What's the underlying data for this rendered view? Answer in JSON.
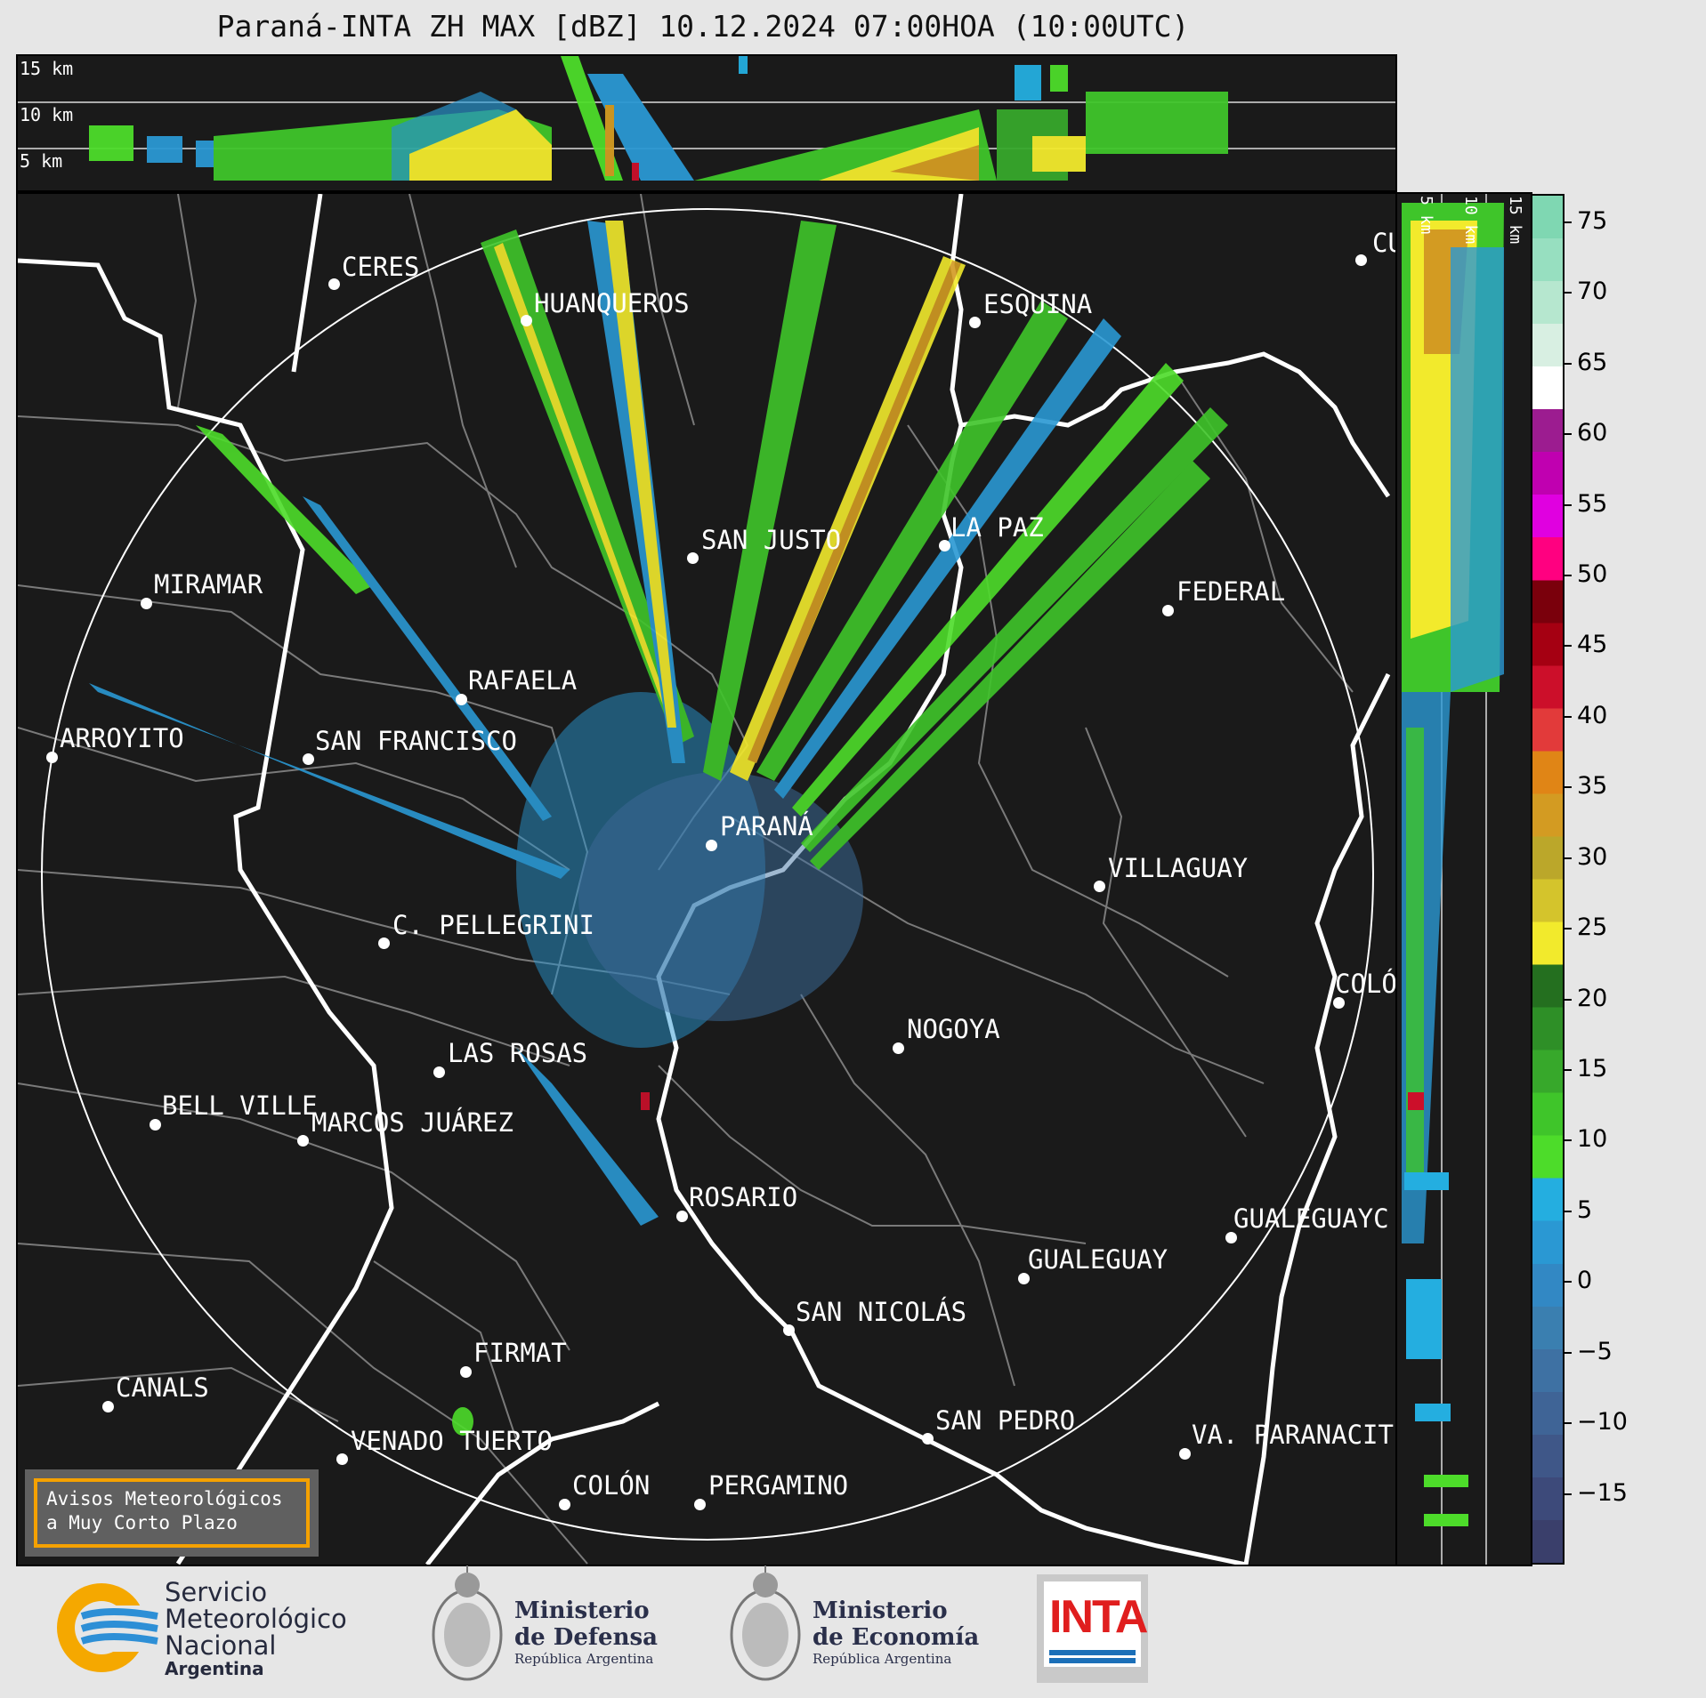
{
  "title": "Paraná-INTA ZH MAX [dBZ] 10.12.2024 07:00HOA (10:00UTC)",
  "top_section": {
    "km_labels": [
      "15 km",
      "10 km",
      "5 km"
    ]
  },
  "side_section": {
    "km_labels": [
      "5 km",
      "10 km",
      "15 km"
    ]
  },
  "cities": [
    {
      "name": "CERES"
    },
    {
      "name": "HUANQUEROS"
    },
    {
      "name": "ESQUINA"
    },
    {
      "name": "CU"
    },
    {
      "name": "SAN JUSTO"
    },
    {
      "name": "LA PAZ"
    },
    {
      "name": "MIRAMAR"
    },
    {
      "name": "FEDERAL"
    },
    {
      "name": "RAFAELA"
    },
    {
      "name": "ARROYITO"
    },
    {
      "name": "SAN FRANCISCO"
    },
    {
      "name": "PARANÁ"
    },
    {
      "name": "VILLAGUAY"
    },
    {
      "name": "C. PELLEGRINI"
    },
    {
      "name": "COLÓ"
    },
    {
      "name": "NOGOYA"
    },
    {
      "name": "LAS ROSAS"
    },
    {
      "name": "BELL VILLE"
    },
    {
      "name": "MARCOS JUÁREZ"
    },
    {
      "name": "ROSARIO"
    },
    {
      "name": "GUALEGUAYC"
    },
    {
      "name": "GUALEGUAY"
    },
    {
      "name": "SAN NICOLÁS"
    },
    {
      "name": "FIRMAT"
    },
    {
      "name": "CANALS"
    },
    {
      "name": "SAN PEDRO"
    },
    {
      "name": "VENADO TUERTO"
    },
    {
      "name": "VA. PARANACIT"
    },
    {
      "name": "COLÓN"
    },
    {
      "name": "PERGAMINO"
    }
  ],
  "colorbar": {
    "ticks": [
      "75",
      "70",
      "65",
      "60",
      "55",
      "50",
      "45",
      "40",
      "35",
      "30",
      "25",
      "20",
      "15",
      "10",
      "5",
      "0",
      "−5",
      "−10",
      "−15"
    ],
    "vmin": -20,
    "vmax": 77,
    "colors": [
      "#3a3f6b",
      "#3d4a7a",
      "#3f5788",
      "#3f6496",
      "#3e71a3",
      "#3a7fb0",
      "#3288c4",
      "#2a98d3",
      "#24aee0",
      "#4ddc2a",
      "#3fc52a",
      "#37a82b",
      "#2e8f27",
      "#246f1f",
      "#f2ea2c",
      "#d4c42c",
      "#bba72a",
      "#d39b22",
      "#e08516",
      "#e23a3a",
      "#cc0f2a",
      "#a50012",
      "#7a000c",
      "#ff0080",
      "#e000e0",
      "#c000b0",
      "#9c1c90",
      "#ffffff",
      "#d8efe2",
      "#b6e7cf",
      "#97dfc0",
      "#7fd7b2"
    ]
  },
  "warning": {
    "line1": "Avisos Meteorológicos",
    "line2": "a Muy Corto Plazo"
  },
  "footer": {
    "smn": {
      "line1": "Servicio",
      "line2": "Meteorológico",
      "line3": "Nacional",
      "line4": "Argentina"
    },
    "defensa": {
      "line1": "Ministerio",
      "line2": "de Defensa",
      "line3": "República Argentina"
    },
    "economia": {
      "line1": "Ministerio",
      "line2": "de Economía",
      "line3": "República Argentina"
    },
    "inta": "INTA"
  }
}
